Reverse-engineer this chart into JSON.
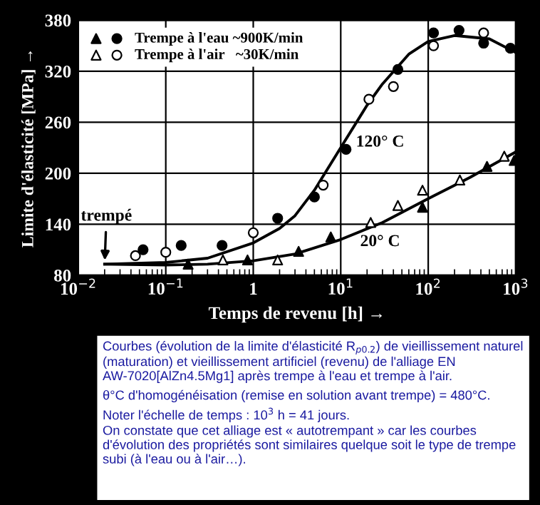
{
  "chart_data": {
    "type": "scatter",
    "xlabel": "Temps de revenu [h] →",
    "ylabel": "Limite d'élasticité [MPa] →",
    "log": "x",
    "xlim": [
      0.01,
      1000
    ],
    "ylim": [
      80,
      380
    ],
    "xticks": [
      {
        "value": 0.01,
        "label": "10$^{−2}$"
      },
      {
        "value": 0.1,
        "label": "10$^{−1}$"
      },
      1,
      {
        "value": 10,
        "label": "10$^{1}$"
      },
      {
        "value": 100,
        "label": "10$^{2}$"
      },
      {
        "value": 1000,
        "label": "10$^{3}$"
      }
    ],
    "yticks": [
      80,
      140,
      200,
      260,
      320,
      380
    ],
    "grid": true,
    "legend": "top left",
    "series": [
      {
        "color": "#000000",
        "marker": "triangle",
        "x": [
          0.18,
          0.86,
          3.3,
          7.7,
          86,
          470,
          960
        ],
        "values": [
          93,
          98,
          108,
          125,
          160,
          208,
          215
        ]
      },
      {
        "name": "Trempe à l'eau ~900K/min",
        "color": "#000000",
        "marker": "circle",
        "x": [
          0.055,
          0.15,
          0.44,
          1.9,
          5,
          11.5,
          45,
          115,
          225,
          430,
          870
        ],
        "values": [
          110,
          115,
          115,
          147,
          172,
          228,
          322,
          365,
          368,
          353,
          347
        ]
      },
      {
        "color": "#ffffff",
        "marker": "triangle",
        "x": [
          0.45,
          1.9,
          22,
          45,
          86,
          230,
          740
        ],
        "values": [
          98,
          98,
          142,
          162,
          180,
          192,
          220
        ]
      },
      {
        "name": "Trempe à l'air   ~30K/min",
        "color": "#ffffff",
        "marker": "circle",
        "x": [
          0.045,
          0.1,
          1,
          6.3,
          21,
          40,
          115,
          430
        ],
        "values": [
          103,
          107,
          130,
          186,
          287,
          302,
          350,
          365
        ]
      },
      {
        "type": "line",
        "color": "#000000",
        "x": [
          0.02,
          0.1,
          0.3,
          1,
          2,
          3,
          5,
          10,
          20,
          30,
          60,
          100,
          200,
          500,
          1000
        ],
        "values": [
          93,
          95,
          100,
          118,
          135,
          150,
          180,
          230,
          280,
          305,
          340,
          355,
          362,
          358,
          342
        ]
      },
      {
        "type": "line",
        "color": "#000000",
        "x": [
          0.02,
          0.1,
          0.3,
          1,
          3,
          10,
          30,
          100,
          300,
          1000
        ],
        "values": [
          93,
          92,
          93,
          97,
          105,
          122,
          142,
          170,
          195,
          225
        ]
      }
    ],
    "annotations": [
      {
        "text": "trempé",
        "x": 0.02,
        "y": 93
      },
      "120° C",
      "20° C",
      "Courbes (évolution de la limite d'élasticité R$_{p0.2}$) de vieillissement naturel (maturation) et vieillissement artificiel (revenu) de l'alliage EN AW-7020[AlZn4.5Mg1] après trempe à l'eau et trempe à l'air.",
      "θ°C d'homogénéisation (remise en solution avant trempe) = 480°C.",
      "Noter l'échelle de temps : 10$^{3}$ h = 41 jours.",
      "On constate que cet alliage est « autotrempant » car les courbes d'évolution des propriétés sont similaires quelque soit le type de trempe subi (à l'eau ou à l'air…)."
    ]
  }
}
